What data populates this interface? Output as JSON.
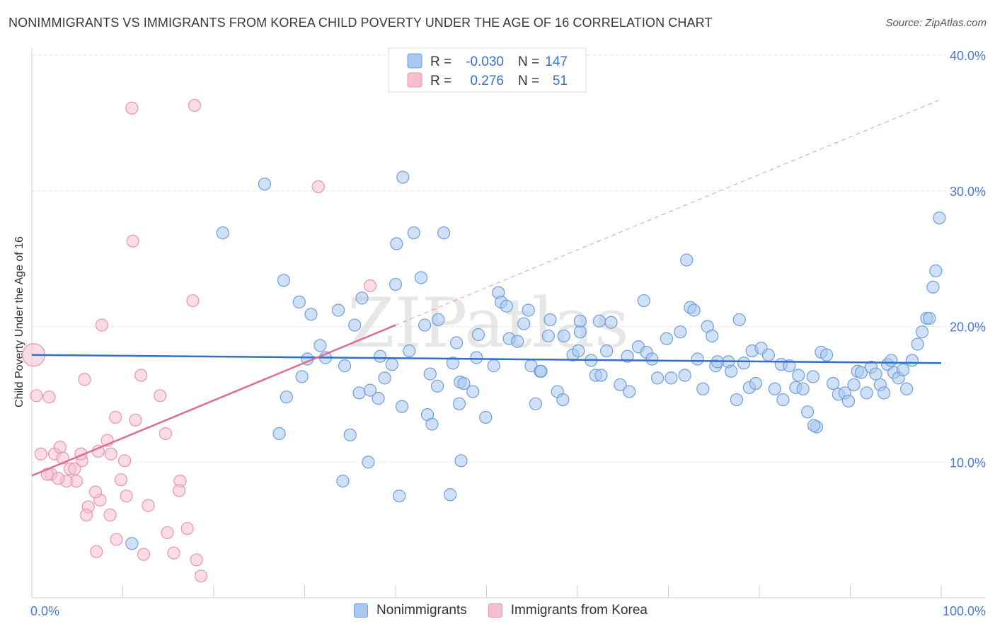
{
  "header": {
    "title": "NONIMMIGRANTS VS IMMIGRANTS FROM KOREA CHILD POVERTY UNDER THE AGE OF 16 CORRELATION CHART",
    "source": "Source: ZipAtlas.com"
  },
  "watermark": "ZIPatlas",
  "colors": {
    "blue_fill": "#a9c8f0",
    "blue_stroke": "#6f9edc",
    "blue_line": "#2f6fd0",
    "pink_fill": "#f6bfd0",
    "pink_stroke": "#e895b0",
    "pink_line": "#e06c96"
  },
  "legend": {
    "rows": [
      {
        "r_label": "R =",
        "r_value": "-0.030",
        "n_label": "N =",
        "n_value": "147"
      },
      {
        "r_label": "R =",
        "r_value": "0.276",
        "n_label": "N =",
        "n_value": "51"
      }
    ]
  },
  "bottom_legend": [
    "Nonimmigrants",
    "Immigrants from Korea"
  ],
  "chart_data": {
    "type": "scatter",
    "title": "NONIMMIGRANTS VS IMMIGRANTS FROM KOREA CHILD POVERTY UNDER THE AGE OF 16 CORRELATION CHART",
    "xlabel": "",
    "ylabel": "Child Poverty Under the Age of 16",
    "xlim": [
      0,
      100
    ],
    "ylim": [
      0,
      40
    ],
    "x_tick_labels": [
      "0.0%",
      "100.0%"
    ],
    "y_ticks": [
      10,
      20,
      30,
      40
    ],
    "y_tick_labels": [
      "10.0%",
      "20.0%",
      "30.0%",
      "40.0%"
    ],
    "grid": true,
    "legend_position": "top-center",
    "series": [
      {
        "name": "Nonimmigrants",
        "r": -0.03,
        "n": 147,
        "trend": {
          "x": [
            0,
            100
          ],
          "y": [
            17.9,
            17.3
          ]
        },
        "points": [
          [
            11,
            4
          ],
          [
            21,
            26.9
          ],
          [
            25.6,
            30.5
          ],
          [
            40.8,
            31
          ],
          [
            27.7,
            23.4
          ],
          [
            28,
            14.8
          ],
          [
            29.7,
            16.3
          ],
          [
            30.3,
            17.6
          ],
          [
            29.4,
            21.8
          ],
          [
            30.7,
            20.9
          ],
          [
            31.7,
            18.6
          ],
          [
            32.3,
            17.7
          ],
          [
            33.7,
            21.2
          ],
          [
            34.4,
            17.1
          ],
          [
            35.5,
            20.1
          ],
          [
            36.3,
            22.1
          ],
          [
            36,
            15.1
          ],
          [
            37.2,
            15.3
          ],
          [
            38.1,
            14.7
          ],
          [
            38.3,
            17.8
          ],
          [
            39.6,
            17.2
          ],
          [
            40.1,
            26.1
          ],
          [
            40,
            23.1
          ],
          [
            40.7,
            14.1
          ],
          [
            41.5,
            18.2
          ],
          [
            42,
            26.9
          ],
          [
            42.8,
            23.6
          ],
          [
            43.2,
            20.1
          ],
          [
            43.8,
            16.5
          ],
          [
            43.5,
            13.5
          ],
          [
            44.7,
            20.5
          ],
          [
            44.6,
            15.6
          ],
          [
            45.3,
            26.9
          ],
          [
            46.3,
            17.3
          ],
          [
            46.7,
            18.8
          ],
          [
            47.1,
            15.9
          ],
          [
            47,
            14.3
          ],
          [
            48.5,
            15.2
          ],
          [
            48.9,
            17.7
          ],
          [
            49.1,
            19.4
          ],
          [
            49.9,
            13.3
          ],
          [
            50.8,
            17.1
          ],
          [
            51.3,
            22.5
          ],
          [
            51.6,
            21.8
          ],
          [
            52.2,
            21.5
          ],
          [
            52.5,
            19.1
          ],
          [
            53.4,
            18.9
          ],
          [
            54.1,
            20.2
          ],
          [
            54.6,
            21.2
          ],
          [
            54.9,
            17.1
          ],
          [
            55.4,
            14.3
          ],
          [
            55.9,
            16.7
          ],
          [
            56.8,
            19.3
          ],
          [
            57,
            20.5
          ],
          [
            57.8,
            15.2
          ],
          [
            58.4,
            14.6
          ],
          [
            59.5,
            17.9
          ],
          [
            60.1,
            18.2
          ],
          [
            60.3,
            19.6
          ],
          [
            61.5,
            17.5
          ],
          [
            62,
            16.4
          ],
          [
            62.4,
            20.4
          ],
          [
            62.6,
            16.4
          ],
          [
            63.2,
            18.2
          ],
          [
            63.7,
            20.3
          ],
          [
            64.7,
            15.7
          ],
          [
            65.5,
            17.8
          ],
          [
            65.7,
            15.2
          ],
          [
            66.7,
            18.5
          ],
          [
            67.6,
            18.1
          ],
          [
            68.2,
            17.6
          ],
          [
            68.8,
            16.2
          ],
          [
            69.8,
            19.1
          ],
          [
            70.3,
            16.2
          ],
          [
            71.3,
            19.6
          ],
          [
            71.8,
            16.4
          ],
          [
            72.4,
            21.4
          ],
          [
            72.8,
            21.2
          ],
          [
            73.2,
            17.6
          ],
          [
            73.8,
            15.4
          ],
          [
            74.3,
            20
          ],
          [
            74.8,
            19.3
          ],
          [
            75.2,
            17.1
          ],
          [
            75.4,
            17.4
          ],
          [
            76.6,
            17.4
          ],
          [
            76.9,
            16.7
          ],
          [
            77.5,
            14.6
          ],
          [
            77.8,
            20.5
          ],
          [
            78.3,
            17.3
          ],
          [
            78.9,
            15.5
          ],
          [
            79.2,
            18.2
          ],
          [
            79.6,
            15.8
          ],
          [
            80.2,
            18.4
          ],
          [
            81,
            17.9
          ],
          [
            81.7,
            15.4
          ],
          [
            82.4,
            17.2
          ],
          [
            83.3,
            17.1
          ],
          [
            84,
            15.5
          ],
          [
            84.3,
            16.4
          ],
          [
            84.8,
            15.4
          ],
          [
            85.3,
            13.7
          ],
          [
            85.9,
            16.3
          ],
          [
            86.3,
            12.6
          ],
          [
            86.8,
            18.1
          ],
          [
            87.4,
            17.9
          ],
          [
            88.1,
            15.8
          ],
          [
            88.7,
            15
          ],
          [
            89.4,
            15.1
          ],
          [
            89.8,
            14.5
          ],
          [
            90.4,
            15.7
          ],
          [
            90.8,
            16.7
          ],
          [
            91.2,
            16.6
          ],
          [
            91.8,
            15.1
          ],
          [
            92.3,
            17
          ],
          [
            92.8,
            16.5
          ],
          [
            93.3,
            15.7
          ],
          [
            93.7,
            15.1
          ],
          [
            94.1,
            17.2
          ],
          [
            94.5,
            17.5
          ],
          [
            94.8,
            16.6
          ],
          [
            95.3,
            16.2
          ],
          [
            95.8,
            16.8
          ],
          [
            96.2,
            15.4
          ],
          [
            96.8,
            17.5
          ],
          [
            97.4,
            18.7
          ],
          [
            97.9,
            19.6
          ],
          [
            98.4,
            20.6
          ],
          [
            98.7,
            20.6
          ],
          [
            99.1,
            22.9
          ],
          [
            99.4,
            24.1
          ],
          [
            99.8,
            28
          ],
          [
            60.3,
            20.4
          ],
          [
            47.5,
            15.8
          ],
          [
            38.8,
            16.2
          ],
          [
            56,
            16.7
          ],
          [
            44,
            12.8
          ],
          [
            37,
            10
          ],
          [
            34.2,
            8.6
          ],
          [
            40.4,
            7.5
          ],
          [
            46,
            7.6
          ],
          [
            47.2,
            10.1
          ],
          [
            35,
            12
          ],
          [
            27.2,
            12.1
          ],
          [
            67.3,
            21.9
          ],
          [
            72,
            24.9
          ],
          [
            58.5,
            19.3
          ],
          [
            82.6,
            14.6
          ],
          [
            86,
            12.7
          ]
        ]
      },
      {
        "name": "Immigrants from Korea",
        "r": 0.276,
        "n": 51,
        "trend": {
          "x": [
            0,
            40
          ],
          "y": [
            9,
            20.1
          ]
        },
        "points": [
          [
            11,
            36.1
          ],
          [
            17.9,
            36.3
          ],
          [
            31.5,
            30.3
          ],
          [
            11.1,
            26.3
          ],
          [
            17.7,
            21.9
          ],
          [
            37.2,
            23
          ],
          [
            7.7,
            20.1
          ],
          [
            12,
            16.4
          ],
          [
            5.8,
            16.1
          ],
          [
            14.1,
            14.9
          ],
          [
            0.5,
            14.9
          ],
          [
            1.9,
            14.8
          ],
          [
            0.2,
            17.9
          ],
          [
            1,
            10.6
          ],
          [
            2.5,
            10.6
          ],
          [
            3.1,
            11.1
          ],
          [
            4.2,
            9.5
          ],
          [
            4.9,
            8.6
          ],
          [
            3.4,
            10.3
          ],
          [
            5.5,
            10.1
          ],
          [
            6.2,
            6.7
          ],
          [
            7.3,
            10.8
          ],
          [
            8.3,
            11.6
          ],
          [
            9.2,
            13.3
          ],
          [
            10.2,
            10.1
          ],
          [
            11.4,
            13.1
          ],
          [
            12.8,
            6.8
          ],
          [
            14.7,
            12.1
          ],
          [
            16.3,
            8.6
          ],
          [
            16.2,
            7.9
          ],
          [
            5.4,
            10.6
          ],
          [
            7.5,
            7.2
          ],
          [
            6,
            6.1
          ],
          [
            7,
            7.8
          ],
          [
            8.6,
            6.1
          ],
          [
            9.3,
            4.3
          ],
          [
            9.8,
            8.7
          ],
          [
            7.1,
            3.4
          ],
          [
            12.3,
            3.2
          ],
          [
            14.9,
            4.8
          ],
          [
            15.6,
            3.3
          ],
          [
            17.1,
            5.1
          ],
          [
            18.1,
            2.8
          ],
          [
            18.6,
            1.6
          ],
          [
            3.8,
            8.6
          ],
          [
            4.7,
            9.5
          ],
          [
            2.1,
            9.1
          ],
          [
            1.7,
            9.1
          ],
          [
            2.9,
            8.8
          ],
          [
            8.7,
            10.6
          ],
          [
            10.4,
            7.5
          ]
        ]
      }
    ]
  }
}
